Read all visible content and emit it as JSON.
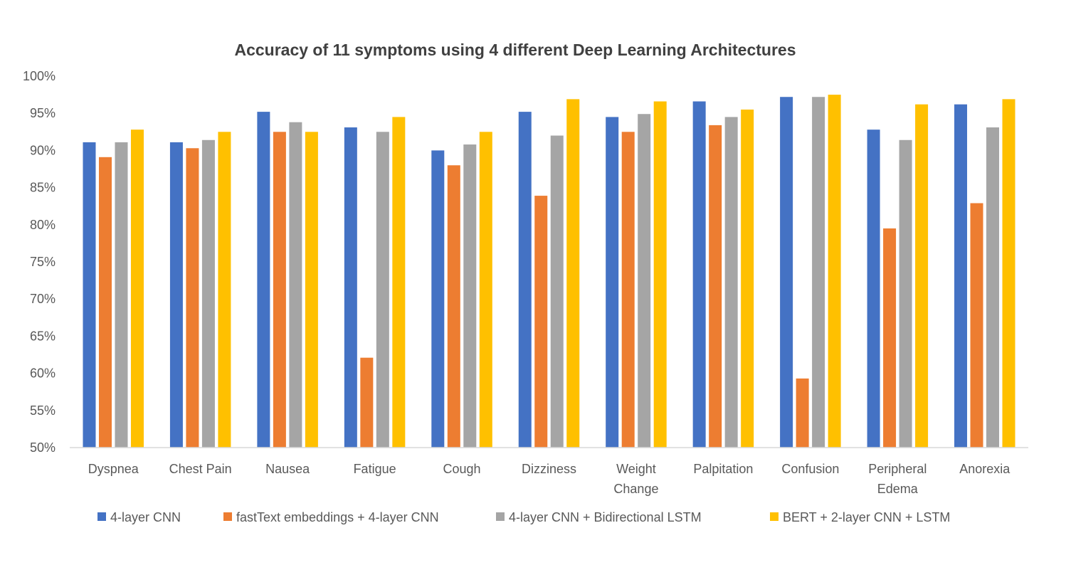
{
  "chart_data": {
    "type": "bar",
    "title": "Accuracy of 11 symptoms using 4 different Deep Learning Architectures",
    "xlabel": "",
    "ylabel": "",
    "ylim": [
      50,
      100
    ],
    "yticks": [
      "50%",
      "55%",
      "60%",
      "65%",
      "70%",
      "75%",
      "80%",
      "85%",
      "90%",
      "95%",
      "100%"
    ],
    "categories": [
      [
        "Dyspnea"
      ],
      [
        "Chest Pain"
      ],
      [
        "Nausea"
      ],
      [
        "Fatigue"
      ],
      [
        "Cough"
      ],
      [
        "Dizziness"
      ],
      [
        "Weight",
        "Change"
      ],
      [
        "Palpitation"
      ],
      [
        "Confusion"
      ],
      [
        "Peripheral",
        "Edema"
      ],
      [
        "Anorexia"
      ]
    ],
    "series": [
      {
        "name": "4-layer CNN",
        "color": "#4472C4",
        "values": [
          91.1,
          91.1,
          95.2,
          93.1,
          90.0,
          95.2,
          94.5,
          96.6,
          97.2,
          92.8,
          96.2
        ]
      },
      {
        "name": "fastText embeddings + 4-layer CNN",
        "color": "#ED7D31",
        "values": [
          89.1,
          90.3,
          92.5,
          62.1,
          88.0,
          83.9,
          92.5,
          93.4,
          59.3,
          79.5,
          82.9
        ]
      },
      {
        "name": "4-layer CNN + Bidirectional LSTM",
        "color": "#A5A5A5",
        "values": [
          91.1,
          91.4,
          93.8,
          92.5,
          90.8,
          92.0,
          94.9,
          94.5,
          97.2,
          91.4,
          93.1
        ]
      },
      {
        "name": "BERT + 2-layer CNN + LSTM",
        "color": "#FFC000",
        "values": [
          92.8,
          92.5,
          92.5,
          94.5,
          92.5,
          96.9,
          96.6,
          95.5,
          97.5,
          96.2,
          96.9
        ]
      }
    ],
    "grid": false,
    "legend_position": "bottom"
  }
}
